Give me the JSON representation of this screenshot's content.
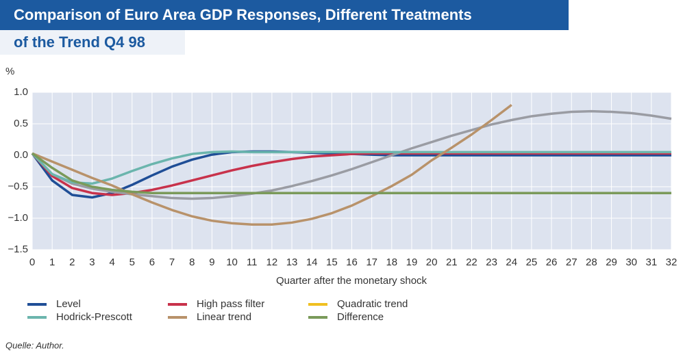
{
  "chart_data": {
    "type": "line",
    "title": [
      "Comparison of Euro Area GDP Responses, Different Treatments",
      "of the Trend Q4 98"
    ],
    "y_label": "%",
    "x_label": "Quarter after the monetary shock",
    "source": "Quelle: Author.",
    "x": [
      0,
      1,
      2,
      3,
      4,
      5,
      6,
      7,
      8,
      9,
      10,
      11,
      12,
      13,
      14,
      15,
      16,
      17,
      18,
      19,
      20,
      21,
      22,
      23,
      24,
      25,
      26,
      27,
      28,
      29,
      30,
      31,
      32
    ],
    "xlim": [
      0,
      32
    ],
    "xticks": [
      0,
      1,
      2,
      3,
      4,
      5,
      6,
      7,
      8,
      9,
      10,
      11,
      12,
      13,
      14,
      15,
      16,
      17,
      18,
      19,
      20,
      21,
      22,
      23,
      24,
      25,
      26,
      27,
      28,
      29,
      30,
      31,
      32
    ],
    "ylim": [
      -1.5,
      1.0
    ],
    "yticks": [
      {
        "value": -1.5,
        "label": "−1.5"
      },
      {
        "value": -1.0,
        "label": "−1.0"
      },
      {
        "value": -0.5,
        "label": "−0.5"
      },
      {
        "value": 0,
        "label": "0.0"
      },
      {
        "value": 0.5,
        "label": "0.5"
      },
      {
        "value": 1.0,
        "label": "1.0"
      }
    ],
    "grid": true,
    "series": [
      {
        "name": "Level",
        "color": "#1f4e96",
        "values": [
          0.03,
          -0.4,
          -0.63,
          -0.67,
          -0.6,
          -0.47,
          -0.32,
          -0.18,
          -0.07,
          0.01,
          0.05,
          0.06,
          0.06,
          0.05,
          0.04,
          0.03,
          0.02,
          0.01,
          0.0,
          0.0,
          0.0,
          0.0,
          0.0,
          0.0,
          0.0,
          0.0,
          0.0,
          0.0,
          0.0,
          0.0,
          0.0,
          0.0,
          0.0
        ]
      },
      {
        "name": "High pass filter",
        "color": "#c8324b",
        "values": [
          0.03,
          -0.33,
          -0.52,
          -0.6,
          -0.63,
          -0.6,
          -0.55,
          -0.48,
          -0.4,
          -0.32,
          -0.24,
          -0.17,
          -0.11,
          -0.06,
          -0.02,
          0.0,
          0.02,
          0.03,
          0.03,
          0.03,
          0.03,
          0.03,
          0.03,
          0.03,
          0.03,
          0.03,
          0.03,
          0.03,
          0.03,
          0.03,
          0.03,
          0.03,
          0.03
        ]
      },
      {
        "name": "Quadratic trend",
        "color": "#f0c020",
        "line_color": "#9a9ca3",
        "values": [
          0.03,
          -0.3,
          -0.45,
          -0.53,
          -0.58,
          -0.62,
          -0.65,
          -0.68,
          -0.69,
          -0.68,
          -0.65,
          -0.61,
          -0.56,
          -0.49,
          -0.41,
          -0.32,
          -0.22,
          -0.11,
          0.0,
          0.11,
          0.21,
          0.31,
          0.4,
          0.49,
          0.56,
          0.62,
          0.66,
          0.69,
          0.7,
          0.69,
          0.67,
          0.63,
          0.58
        ]
      },
      {
        "name": "Hodrick-Prescott",
        "color": "#6bb5ad",
        "values": [
          0.03,
          -0.3,
          -0.43,
          -0.45,
          -0.37,
          -0.25,
          -0.14,
          -0.05,
          0.02,
          0.05,
          0.06,
          0.05,
          0.05,
          0.05,
          0.05,
          0.05,
          0.05,
          0.05,
          0.05,
          0.05,
          0.05,
          0.05,
          0.05,
          0.05,
          0.05,
          0.05,
          0.05,
          0.05,
          0.05,
          0.05,
          0.05,
          0.05,
          0.05
        ]
      },
      {
        "name": "Linear trend",
        "color": "#b8926a",
        "values": [
          0.03,
          -0.1,
          -0.23,
          -0.36,
          -0.48,
          -0.62,
          -0.75,
          -0.87,
          -0.97,
          -1.04,
          -1.08,
          -1.1,
          -1.1,
          -1.07,
          -1.01,
          -0.92,
          -0.8,
          -0.65,
          -0.49,
          -0.31,
          -0.08,
          0.12,
          0.33,
          0.56,
          0.8,
          null,
          null,
          null,
          null,
          null,
          null,
          null,
          null
        ]
      },
      {
        "name": "Difference",
        "color": "#7a9a5a",
        "values": [
          0.03,
          -0.2,
          -0.4,
          -0.5,
          -0.55,
          -0.58,
          -0.6,
          -0.6,
          -0.6,
          -0.6,
          -0.6,
          -0.6,
          -0.6,
          -0.6,
          -0.6,
          -0.6,
          -0.6,
          -0.6,
          -0.6,
          -0.6,
          -0.6,
          -0.6,
          -0.6,
          -0.6,
          -0.6,
          -0.6,
          -0.6,
          -0.6,
          -0.6,
          -0.6,
          -0.6,
          -0.6,
          -0.6
        ]
      }
    ]
  }
}
